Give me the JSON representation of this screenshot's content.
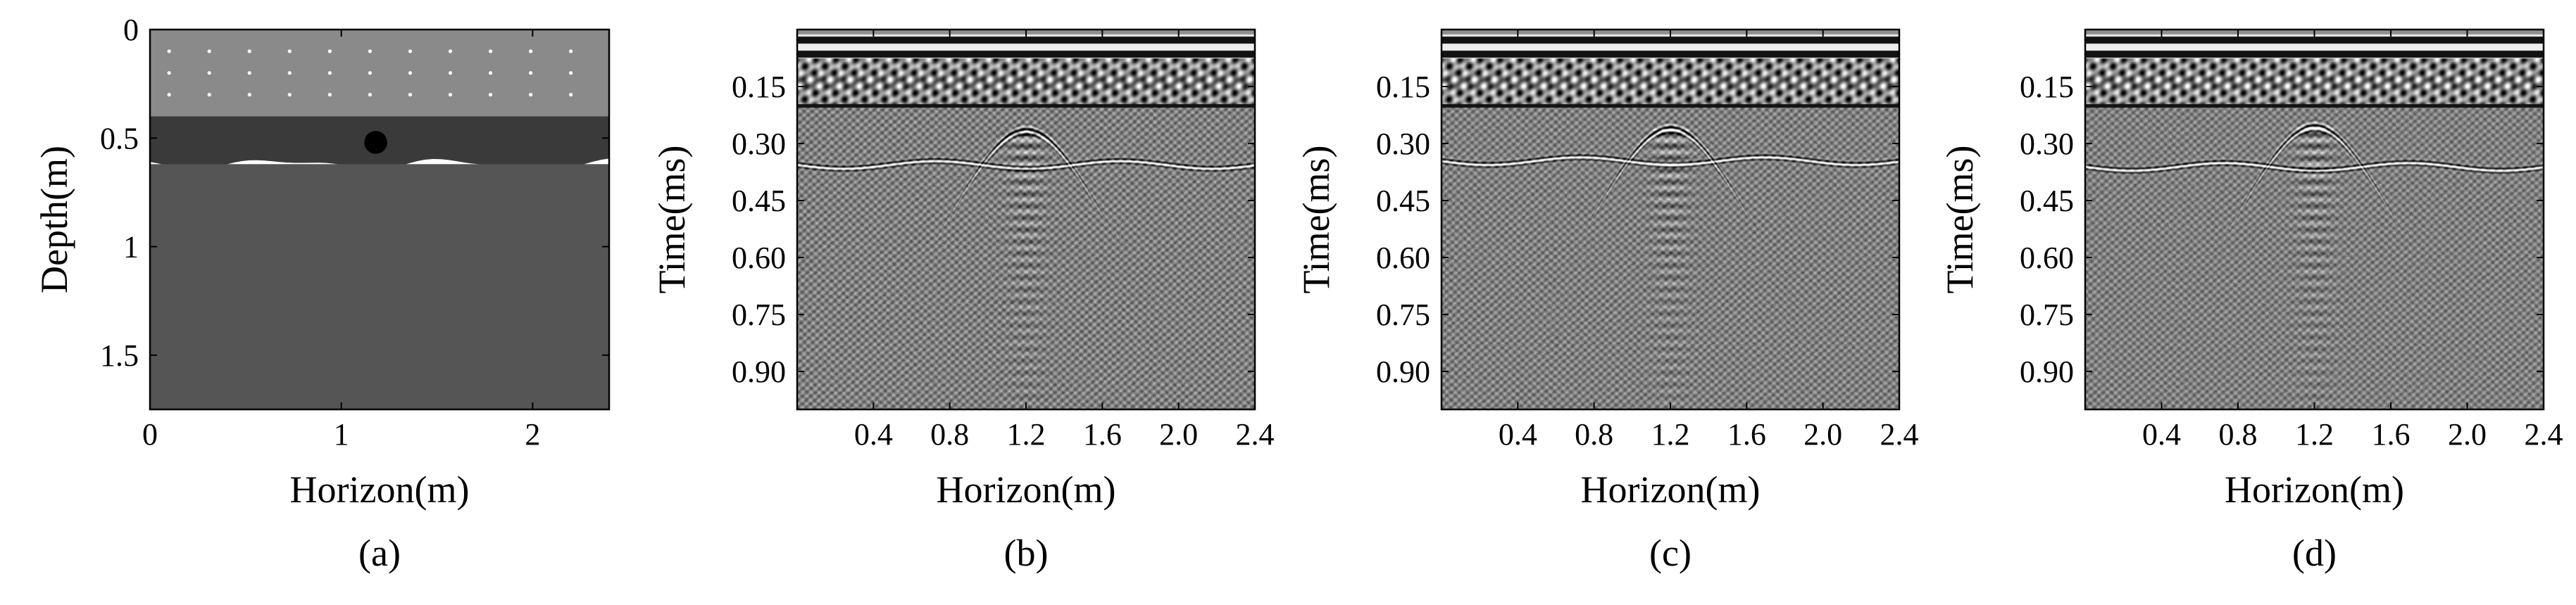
{
  "chart_data": [
    {
      "panel": "a",
      "type": "heatmap",
      "caption": "(a)",
      "xlabel": "Horizon(m)",
      "ylabel": "Depth(m)",
      "xlim": [
        0,
        2.4
      ],
      "ylim": [
        0,
        1.75
      ],
      "y_reversed": true,
      "xticks": [
        0,
        1,
        2
      ],
      "xtick_labels": [
        "0",
        "1",
        "2"
      ],
      "yticks": [
        0,
        0.5,
        1,
        1.5
      ],
      "ytick_labels": [
        "0",
        "0.5",
        "1",
        "1.5"
      ],
      "layers": [
        {
          "depth_top": 0.0,
          "depth_bottom": 0.4,
          "color": "#8a8a8a"
        },
        {
          "depth_top": 0.4,
          "depth_bottom": 0.62,
          "color": "#3a3a3a",
          "bottom_boundary": "irregular"
        },
        {
          "depth_top": 0.62,
          "depth_bottom": 1.75,
          "color": "#555555"
        }
      ],
      "target": {
        "x": 1.18,
        "depth": 0.52,
        "radius": 0.06,
        "color": "#000000"
      },
      "dots": {
        "color": "#ffffff",
        "x_start": 0.1,
        "x_step": 0.21,
        "count": 11,
        "rows": [
          0.1,
          0.2,
          0.3
        ]
      },
      "grid": false
    },
    {
      "panel": "b",
      "type": "heatmap",
      "caption": "(b)",
      "xlabel": "Horizon(m)",
      "ylabel": "Time(ms)",
      "xlim": [
        0,
        2.4
      ],
      "ylim": [
        0,
        1.0
      ],
      "y_reversed": true,
      "xticks": [
        0.4,
        0.8,
        1.2,
        1.6,
        2.0,
        2.4
      ],
      "xtick_labels": [
        "0.4",
        "0.8",
        "1.2",
        "1.6",
        "2.0",
        "2.4"
      ],
      "yticks": [
        0.15,
        0.3,
        0.45,
        0.6,
        0.75,
        0.9
      ],
      "ytick_labels": [
        "0.15",
        "0.30",
        "0.45",
        "0.60",
        "0.75",
        "0.90"
      ],
      "colormap": "gray",
      "direct_wave_bands": [
        0.0,
        0.075
      ],
      "direct_wave_bottom": 0.205,
      "interface_time": 0.355,
      "hyperbola_apex": {
        "x": 1.2,
        "time": 0.265
      },
      "noise_level": 0.45,
      "grid": false
    },
    {
      "panel": "c",
      "type": "heatmap",
      "caption": "(c)",
      "xlabel": "Horizon(m)",
      "ylabel": "Time(ms)",
      "xlim": [
        0,
        2.4
      ],
      "ylim": [
        0,
        1.0
      ],
      "y_reversed": true,
      "xticks": [
        0.4,
        0.8,
        1.2,
        1.6,
        2.0,
        2.4
      ],
      "xtick_labels": [
        "0.4",
        "0.8",
        "1.2",
        "1.6",
        "2.0",
        "2.4"
      ],
      "yticks": [
        0.15,
        0.3,
        0.45,
        0.6,
        0.75,
        0.9
      ],
      "ytick_labels": [
        "0.15",
        "0.30",
        "0.45",
        "0.60",
        "0.75",
        "0.90"
      ],
      "colormap": "gray",
      "direct_wave_bands": [
        0.0,
        0.075
      ],
      "direct_wave_bottom": 0.205,
      "interface_time": 0.345,
      "hyperbola_apex": {
        "x": 1.2,
        "time": 0.26
      },
      "noise_level": 0.42,
      "grid": false
    },
    {
      "panel": "d",
      "type": "heatmap",
      "caption": "(d)",
      "xlabel": "Horizon(m)",
      "ylabel": "Time(ms)",
      "xlim": [
        0,
        2.4
      ],
      "ylim": [
        0,
        1.0
      ],
      "y_reversed": true,
      "xticks": [
        0.4,
        0.8,
        1.2,
        1.6,
        2.0,
        2.4
      ],
      "xtick_labels": [
        "0.4",
        "0.8",
        "1.2",
        "1.6",
        "2.0",
        "2.4"
      ],
      "yticks": [
        0.15,
        0.3,
        0.45,
        0.6,
        0.75,
        0.9
      ],
      "ytick_labels": [
        "0.15",
        "0.30",
        "0.45",
        "0.60",
        "0.75",
        "0.90"
      ],
      "colormap": "gray",
      "direct_wave_bands": [
        0.0,
        0.075
      ],
      "direct_wave_bottom": 0.205,
      "interface_time": 0.36,
      "hyperbola_apex": {
        "x": 1.2,
        "time": 0.255
      },
      "noise_level": 0.4,
      "grid": false
    }
  ]
}
